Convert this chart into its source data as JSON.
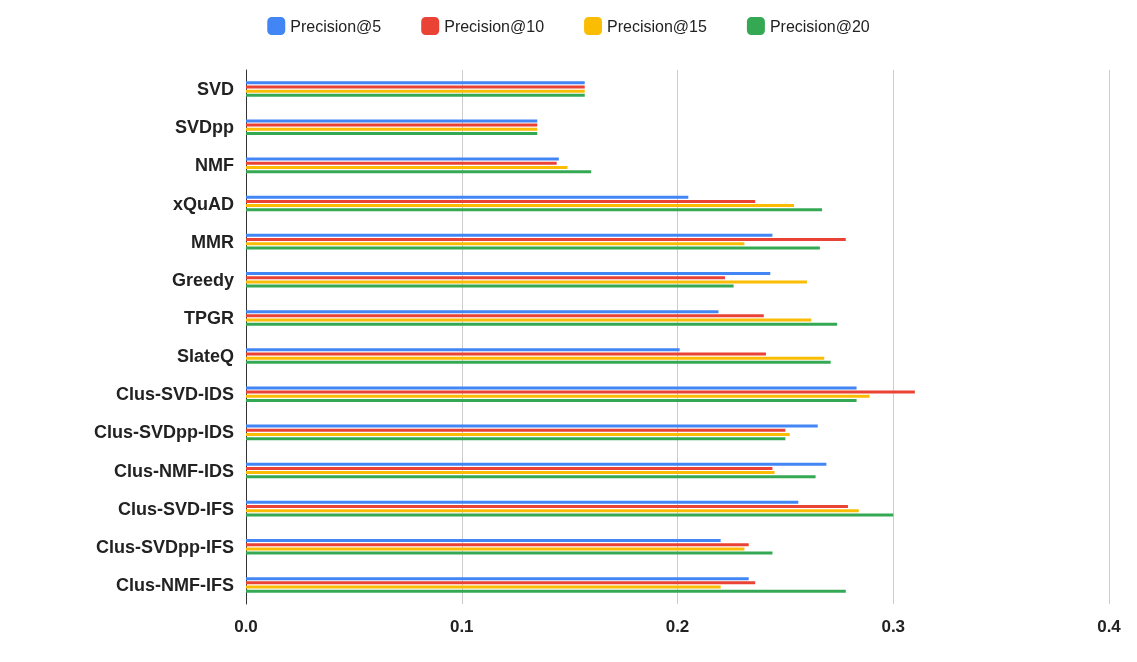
{
  "chart_data": {
    "type": "bar",
    "orientation": "horizontal",
    "legend": "top",
    "grid": "x",
    "categories": [
      "SVD",
      "SVDpp",
      "NMF",
      "xQuAD",
      "MMR",
      "Greedy",
      "TPGR",
      "SlateQ",
      "Clus-SVD-IDS",
      "Clus-SVDpp-IDS",
      "Clus-NMF-IDS",
      "Clus-SVD-IFS",
      "Clus-SVDpp-IFS",
      "Clus-NMF-IFS"
    ],
    "xlim": [
      0,
      0.4
    ],
    "xticks": [
      {
        "value": 0,
        "label": "0.0"
      },
      {
        "value": 0.1,
        "label": "0.1"
      },
      {
        "value": 0.2,
        "label": "0.2"
      },
      {
        "value": 0.3,
        "label": "0.3"
      },
      {
        "value": 0.4,
        "label": "0.4"
      }
    ],
    "series": [
      {
        "name": "Precision@5",
        "color": "#4285f4",
        "values": [
          0.157,
          0.135,
          0.145,
          0.205,
          0.244,
          0.243,
          0.219,
          0.201,
          0.283,
          0.265,
          0.269,
          0.256,
          0.22,
          0.233
        ]
      },
      {
        "name": "Precision@10",
        "color": "#ea4335",
        "values": [
          0.157,
          0.135,
          0.144,
          0.236,
          0.278,
          0.222,
          0.24,
          0.241,
          0.31,
          0.25,
          0.244,
          0.279,
          0.233,
          0.236
        ]
      },
      {
        "name": "Precision@15",
        "color": "#fbbc04",
        "values": [
          0.157,
          0.135,
          0.149,
          0.254,
          0.231,
          0.26,
          0.262,
          0.268,
          0.289,
          0.252,
          0.245,
          0.284,
          0.231,
          0.22
        ]
      },
      {
        "name": "Precision@20",
        "color": "#34a853",
        "values": [
          0.157,
          0.135,
          0.16,
          0.267,
          0.266,
          0.226,
          0.274,
          0.271,
          0.283,
          0.25,
          0.264,
          0.3,
          0.244,
          0.278
        ]
      }
    ]
  }
}
